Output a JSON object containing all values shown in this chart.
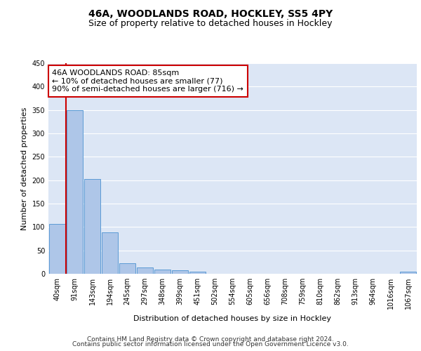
{
  "title": "46A, WOODLANDS ROAD, HOCKLEY, SS5 4PY",
  "subtitle": "Size of property relative to detached houses in Hockley",
  "xlabel": "Distribution of detached houses by size in Hockley",
  "ylabel": "Number of detached properties",
  "categories": [
    "40sqm",
    "91sqm",
    "143sqm",
    "194sqm",
    "245sqm",
    "297sqm",
    "348sqm",
    "399sqm",
    "451sqm",
    "502sqm",
    "554sqm",
    "605sqm",
    "656sqm",
    "708sqm",
    "759sqm",
    "810sqm",
    "862sqm",
    "913sqm",
    "964sqm",
    "1016sqm",
    "1067sqm"
  ],
  "values": [
    107,
    350,
    202,
    88,
    23,
    14,
    9,
    8,
    5,
    0,
    0,
    0,
    0,
    0,
    0,
    0,
    0,
    0,
    0,
    0,
    5
  ],
  "bar_color": "#aec6e8",
  "bar_edge_color": "#5b9bd5",
  "background_color": "#dce6f5",
  "grid_color": "#ffffff",
  "vline_color": "#cc0000",
  "annotation_line1": "46A WOODLANDS ROAD: 85sqm",
  "annotation_line2": "← 10% of detached houses are smaller (77)",
  "annotation_line3": "90% of semi-detached houses are larger (716) →",
  "annotation_box_color": "#ffffff",
  "annotation_box_edge_color": "#cc0000",
  "ylim": [
    0,
    450
  ],
  "yticks": [
    0,
    50,
    100,
    150,
    200,
    250,
    300,
    350,
    400,
    450
  ],
  "footer_line1": "Contains HM Land Registry data © Crown copyright and database right 2024.",
  "footer_line2": "Contains public sector information licensed under the Open Government Licence v3.0.",
  "title_fontsize": 10,
  "subtitle_fontsize": 9,
  "axis_label_fontsize": 8,
  "tick_fontsize": 7,
  "annotation_fontsize": 8,
  "footer_fontsize": 6.5
}
